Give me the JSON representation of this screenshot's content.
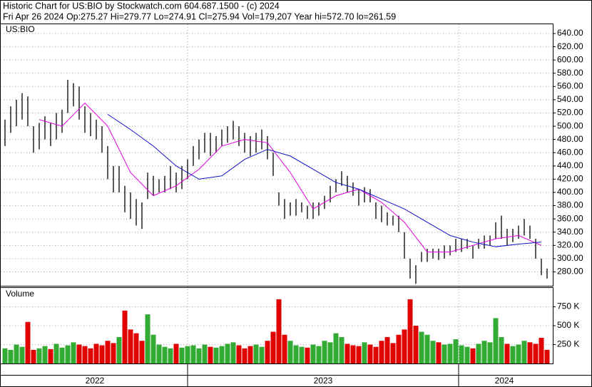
{
  "chart_data": {
    "type": "ohlc",
    "title": "Historic Chart for US:BIO by Stockwatch.com 604.687.1500 - (c) 2024",
    "subtitle": "Fri Apr 26 2024  Op:275.27  Hi=279.77  Lo=274.91  Cl=275.94  Vol=179,207  Year hi=572.70  lo=261.59",
    "symbol": "US:BIO",
    "volume_label": "Volume",
    "years": [
      "2022",
      "2023",
      "2024"
    ],
    "year_starts": [
      32.5,
      80
    ],
    "high": [
      510,
      530,
      540,
      550,
      545,
      500,
      505,
      515,
      505,
      520,
      525,
      570,
      565,
      560,
      530,
      520,
      510,
      500,
      470,
      440,
      440,
      410,
      400,
      390,
      385,
      430,
      425,
      420,
      425,
      440,
      430,
      440,
      450,
      470,
      480,
      490,
      490,
      485,
      495,
      500,
      508,
      500,
      490,
      485,
      490,
      495,
      485,
      460,
      400,
      390,
      385,
      390,
      385,
      380,
      385,
      385,
      395,
      410,
      420,
      432,
      425,
      415,
      405,
      408,
      405,
      385,
      380,
      370,
      365,
      365,
      340,
      300,
      290,
      310,
      315,
      315,
      315,
      320,
      320,
      330,
      330,
      330,
      320,
      330,
      335,
      335,
      355,
      365,
      345,
      345,
      350,
      360,
      350,
      330,
      300,
      285
    ],
    "low": [
      470,
      490,
      500,
      510,
      500,
      460,
      465,
      480,
      470,
      480,
      490,
      520,
      530,
      510,
      490,
      485,
      480,
      460,
      420,
      400,
      400,
      370,
      360,
      350,
      345,
      390,
      395,
      400,
      400,
      405,
      400,
      405,
      420,
      440,
      450,
      460,
      455,
      460,
      470,
      475,
      480,
      470,
      460,
      455,
      460,
      465,
      450,
      425,
      380,
      360,
      365,
      365,
      370,
      360,
      360,
      365,
      375,
      385,
      400,
      410,
      400,
      395,
      380,
      385,
      385,
      360,
      355,
      350,
      350,
      340,
      300,
      270,
      262,
      295,
      295,
      300,
      298,
      300,
      305,
      310,
      310,
      315,
      300,
      315,
      315,
      320,
      330,
      330,
      320,
      325,
      330,
      335,
      330,
      300,
      275,
      270
    ],
    "ma_index": [
      2,
      6,
      10,
      14,
      18,
      22,
      26,
      30,
      34,
      38,
      42,
      46,
      50,
      54,
      58,
      62,
      66,
      70,
      74,
      78,
      82,
      86,
      90,
      94
    ],
    "moving_averages": [
      {
        "color": "#e000e0",
        "values": [
          null,
          510,
          500,
          535,
          500,
          430,
          395,
          410,
          435,
          470,
          480,
          475,
          430,
          375,
          395,
          405,
          385,
          355,
          310,
          310,
          320,
          330,
          335,
          320
        ]
      },
      {
        "color": "#1010c8",
        "values": [
          null,
          null,
          null,
          null,
          518,
          495,
          470,
          440,
          420,
          425,
          450,
          465,
          455,
          435,
          415,
          405,
          390,
          375,
          355,
          335,
          325,
          318,
          322,
          325
        ]
      }
    ],
    "volume": [
      200000,
      180000,
      250000,
      220000,
      550000,
      180000,
      200000,
      230000,
      190000,
      260000,
      210000,
      240000,
      280000,
      250000,
      230000,
      200000,
      260000,
      240000,
      300000,
      270000,
      350000,
      700000,
      450000,
      400000,
      300000,
      650000,
      380000,
      250000,
      220000,
      200000,
      260000,
      210000,
      230000,
      240000,
      200000,
      250000,
      220000,
      210000,
      230000,
      260000,
      280000,
      240000,
      200000,
      230000,
      250000,
      220000,
      300000,
      420000,
      850000,
      380000,
      300000,
      240000,
      220000,
      210000,
      250000,
      230000,
      300000,
      280000,
      400000,
      350000,
      260000,
      240000,
      230000,
      280000,
      250000,
      220000,
      300000,
      350000,
      270000,
      380000,
      450000,
      850000,
      500000,
      420000,
      380000,
      300000,
      280000,
      250000,
      260000,
      320000,
      240000,
      220000,
      200000,
      260000,
      300000,
      280000,
      600000,
      350000,
      260000,
      230000,
      250000,
      300000,
      280000,
      260000,
      340000,
      180000
    ],
    "up_color": "#33aa33",
    "down_color": "#e00000",
    "bar_color": "#000000",
    "ylim": [
      259,
      654
    ],
    "yticks": [
      {
        "value": 280,
        "label": "280.00"
      },
      {
        "value": 300,
        "label": "300.00"
      },
      {
        "value": 320,
        "label": "320.00"
      },
      {
        "value": 340,
        "label": "340.00"
      },
      {
        "value": 360,
        "label": "360.00"
      },
      {
        "value": 380,
        "label": "380.00"
      },
      {
        "value": 400,
        "label": "400.00"
      },
      {
        "value": 420,
        "label": "420.00"
      },
      {
        "value": 440,
        "label": "440.00"
      },
      {
        "value": 460,
        "label": "460.00"
      },
      {
        "value": 480,
        "label": "480.00"
      },
      {
        "value": 500,
        "label": "500.00"
      },
      {
        "value": 520,
        "label": "520.00"
      },
      {
        "value": 540,
        "label": "540.00"
      },
      {
        "value": 560,
        "label": "560.00"
      },
      {
        "value": 580,
        "label": "580.00"
      },
      {
        "value": 600,
        "label": "600.00"
      },
      {
        "value": 620,
        "label": "620.00"
      },
      {
        "value": 640,
        "label": "640.00"
      }
    ],
    "vlim": [
      0,
      1000000
    ],
    "vticks": [
      {
        "value": 250000,
        "label": "250 K"
      },
      {
        "value": 500000,
        "label": "500 K"
      },
      {
        "value": 750000,
        "label": "750 K"
      }
    ],
    "grid": true
  }
}
